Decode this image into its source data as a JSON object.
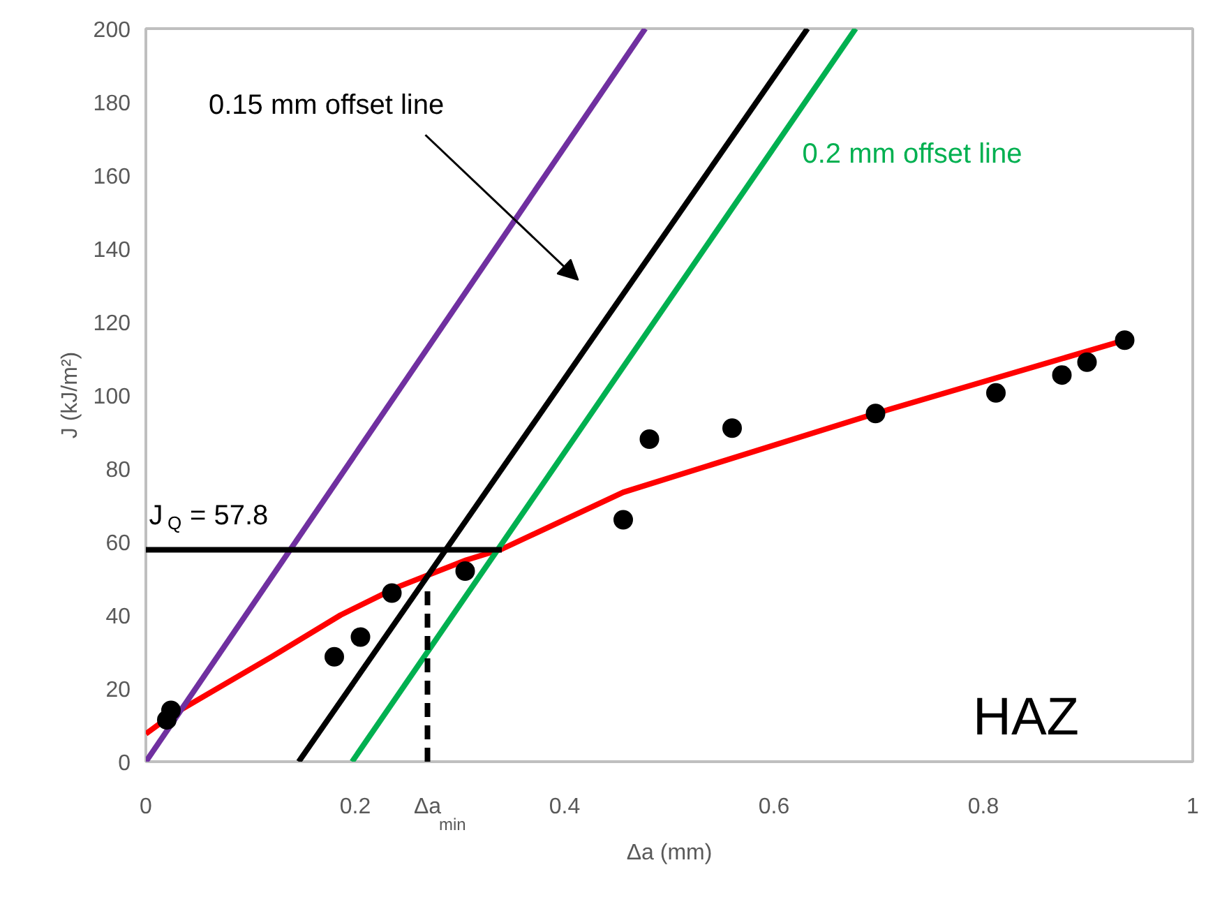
{
  "chart_data": {
    "type": "line",
    "xlabel": "Δa (mm)",
    "ylabel": "J (kJ/m²)",
    "xlim": [
      0,
      1
    ],
    "ylim": [
      0,
      200
    ],
    "xticks": [
      0,
      0.2,
      0.4,
      0.6,
      0.8,
      1
    ],
    "yticks": [
      0,
      20,
      40,
      60,
      80,
      100,
      120,
      140,
      160,
      180,
      200
    ],
    "grid": false,
    "series": [
      {
        "type": "scatter",
        "marker": "circle",
        "color": "#000000",
        "x": [
          0.02,
          0.024,
          0.18,
          0.205,
          0.235,
          0.305,
          0.456,
          0.481,
          0.56,
          0.697,
          0.812,
          0.875,
          0.899,
          0.935
        ],
        "values": [
          11.4,
          14,
          28.6,
          34,
          46,
          52,
          66,
          88,
          91,
          95,
          100.6,
          105.5,
          109,
          115
        ]
      },
      {
        "color": "#ff0000",
        "x": [
          0,
          0.024,
          0.12,
          0.186,
          0.24,
          0.306,
          0.34,
          0.456,
          0.697,
          0.935
        ],
        "values": [
          7.6,
          12.6,
          28.6,
          40,
          47.6,
          55,
          58,
          73.5,
          95,
          115
        ]
      },
      {
        "color": "#7030a0",
        "x": [
          0,
          0.477
        ],
        "values": [
          0,
          200
        ]
      },
      {
        "color": "#000000",
        "x": [
          0.146,
          0.632
        ],
        "values": [
          0,
          200
        ]
      },
      {
        "color": "#00b050",
        "x": [
          0.197,
          0.678
        ],
        "values": [
          0,
          200
        ]
      },
      {
        "color": "#000000",
        "x": [
          0,
          0.34
        ],
        "values": [
          57.8,
          57.8
        ]
      },
      {
        "color": "#000000",
        "x": [
          0.269,
          0.269
        ],
        "values": [
          0,
          47.6
        ],
        "line_style": "dashed"
      }
    ],
    "annotations": [
      "0.15 mm offset line",
      "0.2 mm offset line",
      "J$_{Q}$ = 57.8",
      "Δa$_{min}$",
      "HAZ"
    ]
  }
}
